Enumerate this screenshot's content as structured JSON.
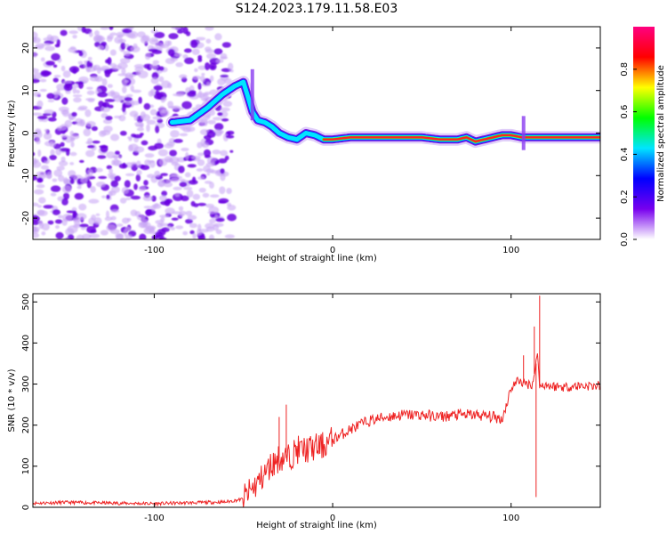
{
  "chart_data": [
    {
      "type": "heatmap",
      "title": "S124.2023.179.11.58.E03",
      "xlabel": "Height of straight line (km)",
      "ylabel": "Frequency (Hz)",
      "xlim": [
        -168,
        150
      ],
      "ylim": [
        -25,
        25
      ],
      "xticks": [
        -100,
        0,
        100
      ],
      "yticks": [
        -20,
        -10,
        0,
        10,
        20
      ],
      "colorbar": {
        "label": "Normalized spectral amplitude",
        "range": [
          0,
          1
        ],
        "ticks": [
          "0.0",
          "0.2",
          "0.4",
          "0.6",
          "0.8"
        ],
        "colors": [
          "#ffffff",
          "#7700ee",
          "#0000ff",
          "#00e5ff",
          "#00ff00",
          "#ffff00",
          "#ff0000",
          "#ff0080"
        ]
      },
      "ridge": {
        "x": [
          -90,
          -80,
          -70,
          -62,
          -55,
          -50,
          -45,
          -42,
          -38,
          -34,
          -30,
          -25,
          -20,
          -15,
          -10,
          -5,
          0,
          10,
          20,
          30,
          40,
          50,
          60,
          70,
          75,
          80,
          85,
          90,
          95,
          100,
          106,
          110,
          120,
          130,
          140,
          150
        ],
        "frequency_hz": [
          2.5,
          3,
          6,
          9,
          11,
          12,
          5,
          3,
          2.5,
          1.5,
          0,
          -1,
          -1.5,
          0,
          -0.5,
          -1.5,
          -1.5,
          -1,
          -1,
          -1,
          -1,
          -1,
          -1.5,
          -1.5,
          -1,
          -2,
          -1.5,
          -1,
          -0.5,
          -0.5,
          -1,
          -1,
          -1,
          -1,
          -1,
          -1
        ]
      }
    },
    {
      "type": "line",
      "xlabel": "Height of straight line (km)",
      "ylabel": "SNR (10 * v/v)",
      "xlim": [
        -168,
        150
      ],
      "ylim": [
        0,
        520
      ],
      "xticks": [
        -100,
        0,
        100
      ],
      "yticks": [
        0,
        100,
        200,
        300,
        400,
        500
      ],
      "color": "#ee2222",
      "series": [
        {
          "x": [
            -168,
            -150,
            -120,
            -100,
            -80,
            -60,
            -50,
            -45,
            -40,
            -35,
            -30,
            -25,
            -20,
            -15,
            -10,
            -5,
            0,
            10,
            20,
            30,
            40,
            50,
            60,
            70,
            80,
            90,
            95,
            100,
            104,
            108,
            112,
            114,
            115,
            116,
            118,
            122,
            130,
            140,
            150
          ],
          "y": [
            10,
            12,
            10,
            9,
            11,
            13,
            20,
            45,
            70,
            100,
            120,
            120,
            140,
            140,
            145,
            150,
            165,
            190,
            210,
            220,
            225,
            225,
            220,
            225,
            225,
            220,
            215,
            290,
            310,
            300,
            300,
            350,
            380,
            290,
            300,
            295,
            293,
            296,
            295
          ]
        }
      ],
      "spikes": [
        {
          "x": -30,
          "y": 220
        },
        {
          "x": -26,
          "y": 250
        },
        {
          "x": 107,
          "y": 370
        },
        {
          "x": 113,
          "y": 440
        },
        {
          "x": 114,
          "y": 25
        },
        {
          "x": 116,
          "y": 515
        }
      ]
    }
  ]
}
